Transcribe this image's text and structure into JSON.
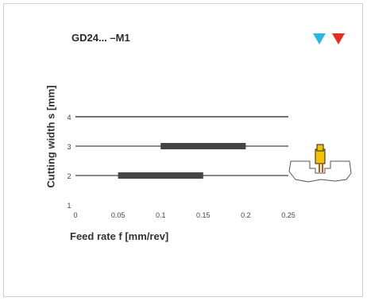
{
  "chart_data": {
    "type": "bar",
    "title": "GD24... –M1",
    "xlabel": "Feed rate f [mm/rev]",
    "ylabel": "Cutting width s [mm]",
    "xlim": [
      0,
      0.25
    ],
    "ylim": [
      1,
      4
    ],
    "x_ticks": [
      "0",
      "0.05",
      "0.1",
      "0.15",
      "0.2",
      "0.25"
    ],
    "y_ticks": [
      "1",
      "2",
      "3",
      "4"
    ],
    "reference_lines_y": [
      2,
      3,
      4
    ],
    "series": [
      {
        "y": 3,
        "range": [
          0.1,
          0.2
        ]
      },
      {
        "y": 2,
        "range": [
          0.05,
          0.15
        ]
      }
    ],
    "colors": {
      "bar": "#454545",
      "line": "#444444",
      "marker_1": "#29b6e8",
      "marker_2": "#e53020"
    },
    "icons": [
      "cyan-triangle-marker-icon",
      "red-triangle-marker-icon",
      "parting-tool-icon"
    ]
  }
}
